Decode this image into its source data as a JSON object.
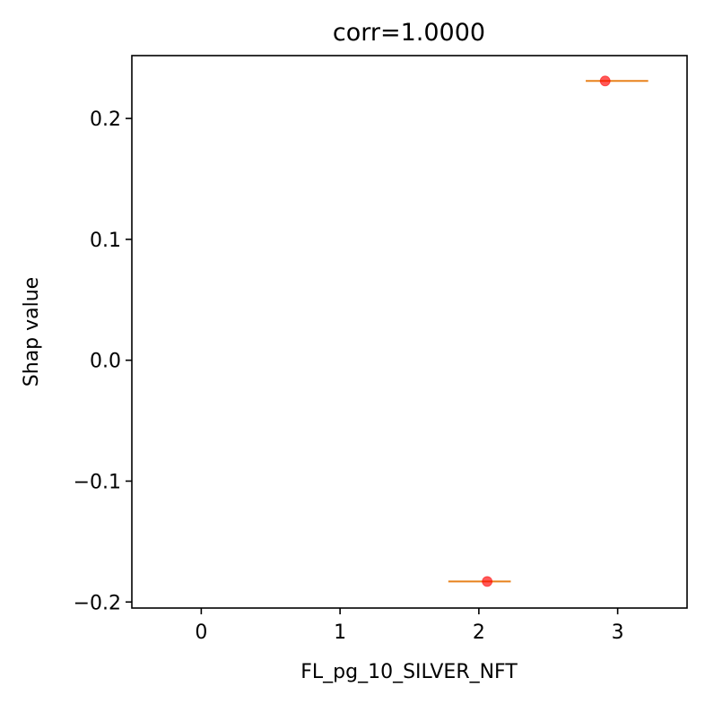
{
  "chart_data": {
    "type": "scatter",
    "title": "corr=1.0000",
    "xlabel": "FL_pg_10_SILVER_NFT",
    "ylabel": "Shap value",
    "xlim": [
      -0.5,
      3.5
    ],
    "ylim": [
      -0.205,
      0.252
    ],
    "xticks": [
      0,
      1,
      2,
      3
    ],
    "xtick_labels": [
      "0",
      "1",
      "2",
      "3"
    ],
    "yticks": [
      -0.2,
      -0.1,
      0.0,
      0.1,
      0.2
    ],
    "ytick_labels": [
      "−0.2",
      "−0.1",
      "0.0",
      "0.1",
      "0.2"
    ],
    "grid": false,
    "points": [
      {
        "x": 2.06,
        "y": -0.183
      },
      {
        "x": 2.91,
        "y": 0.231
      }
    ],
    "mean_lines": [
      {
        "x_start": 1.78,
        "x_end": 2.23,
        "y": -0.183
      },
      {
        "x_start": 2.77,
        "x_end": 3.22,
        "y": 0.231
      }
    ],
    "colors": {
      "points": "#ff0000",
      "mean_lines": "#e8821c",
      "axes": "#000000"
    }
  }
}
